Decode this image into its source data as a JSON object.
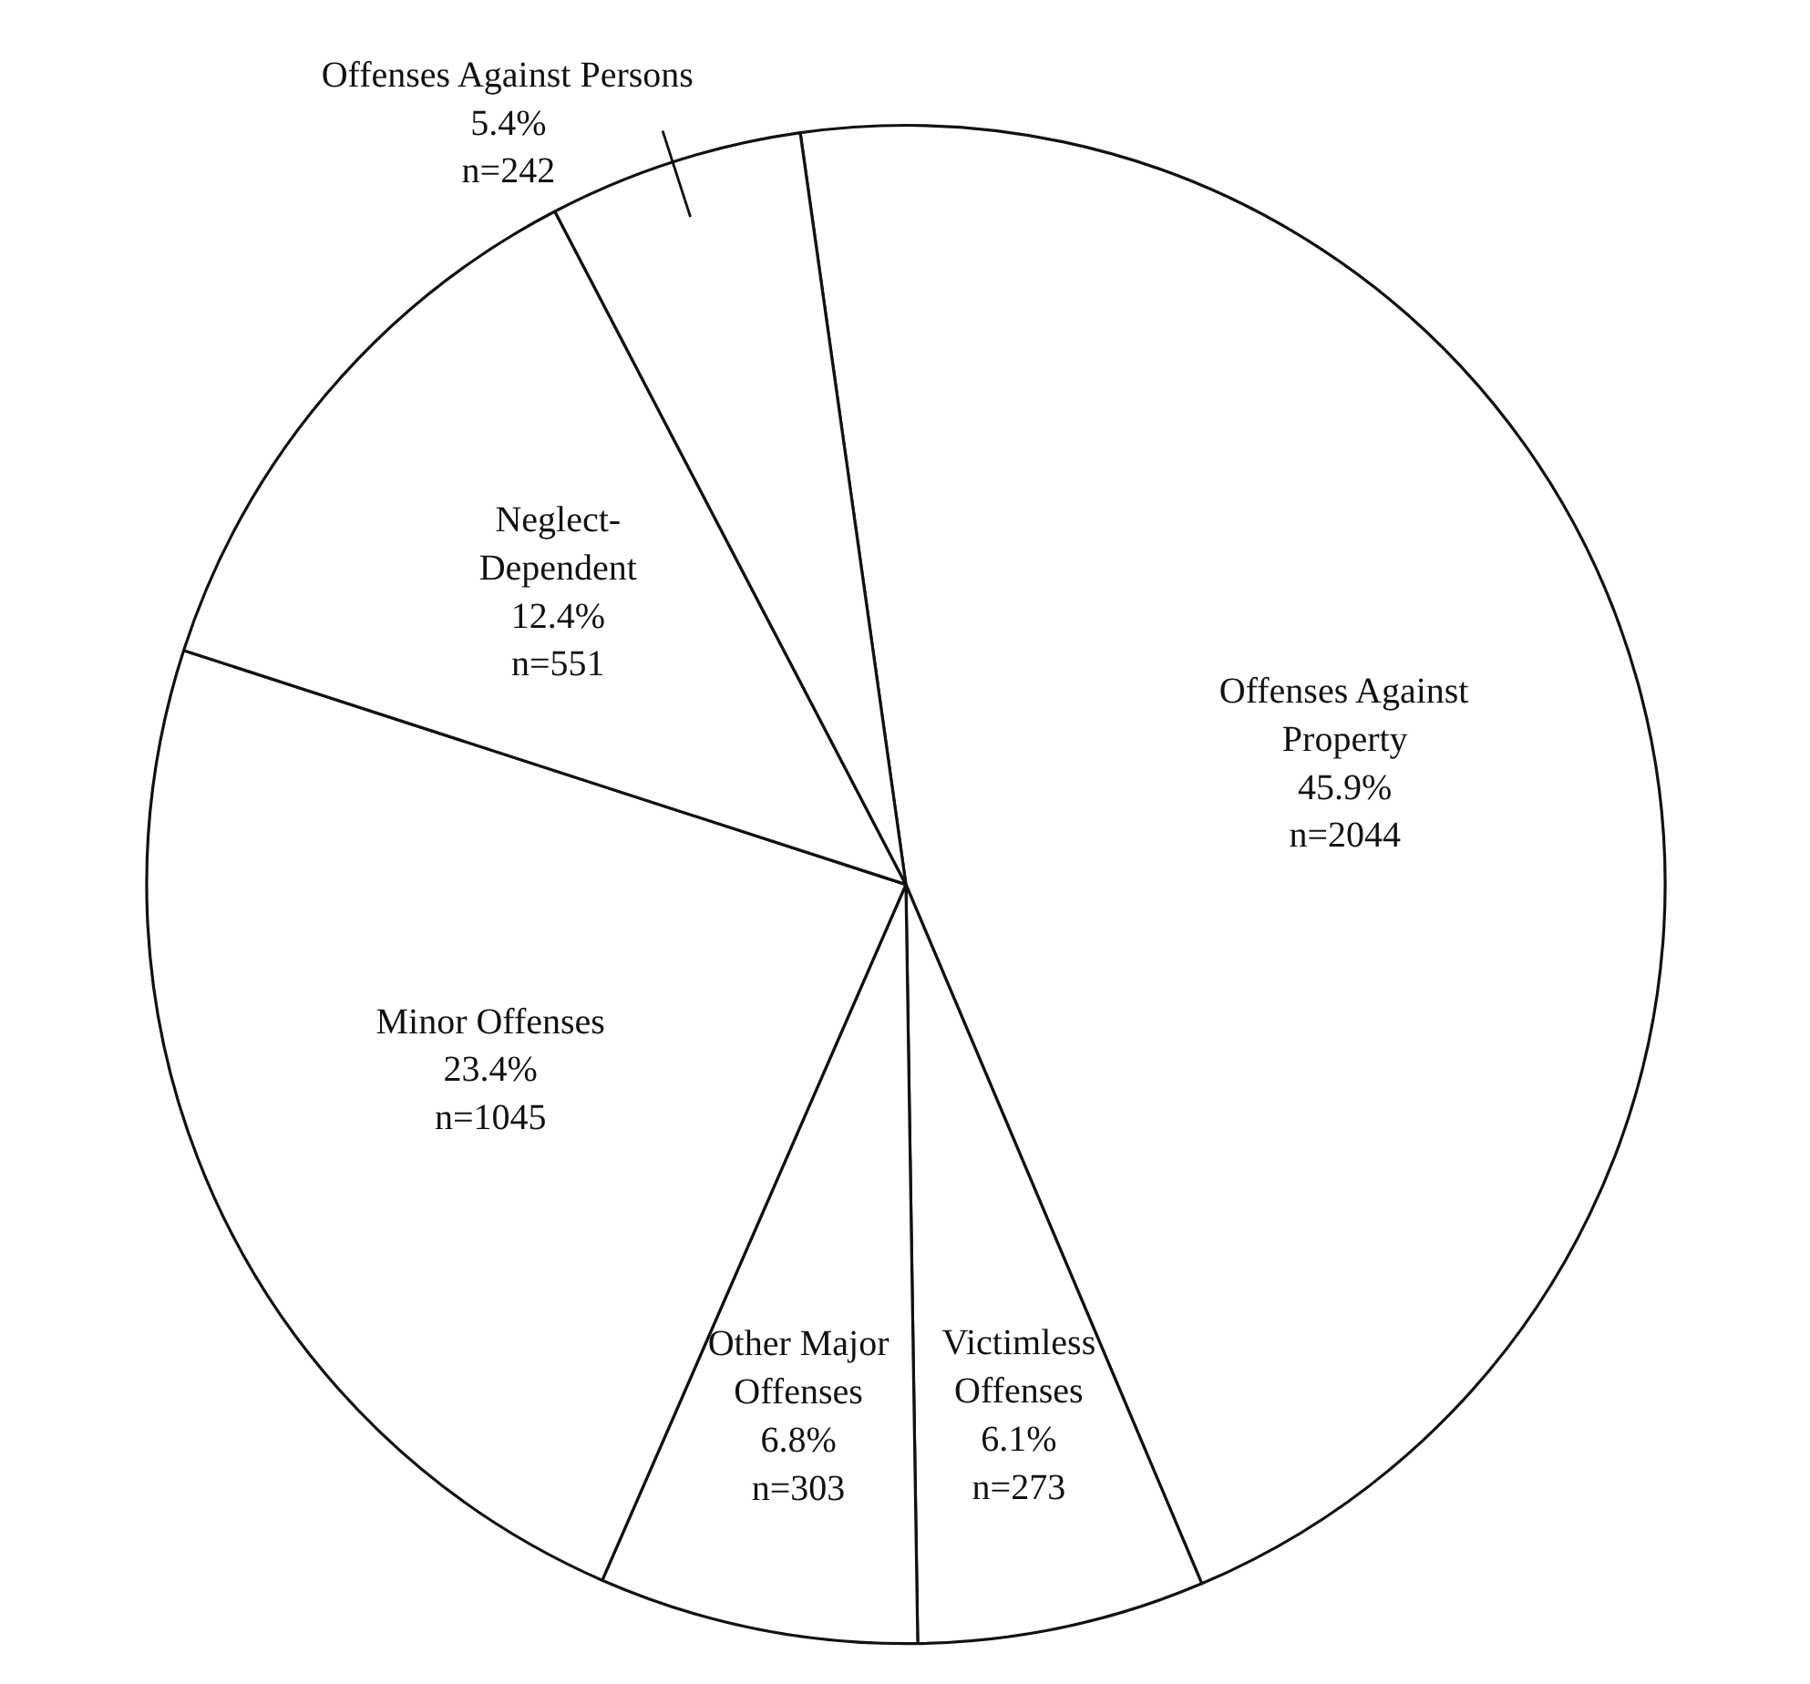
{
  "chart_data": {
    "type": "pie",
    "categories": [
      "Offenses Against\nProperty",
      "Victimless\nOffenses",
      "Other Major\nOffenses",
      "Minor Offenses",
      "Neglect-\nDependent",
      "Offenses Against Persons"
    ],
    "values": [
      2044,
      273,
      303,
      1045,
      551,
      242
    ],
    "value_labels": [
      "45.9%\nn=2044",
      "6.1%\nn=273",
      "6.8%\nn=303",
      "23.4%\nn=1045",
      "12.4%\nn=551",
      "5.4%\nn=242"
    ],
    "colors": [
      "#ffffff",
      "#ffffff",
      "#ffffff",
      "#ffffff",
      "#ffffff",
      "#ffffff"
    ]
  }
}
